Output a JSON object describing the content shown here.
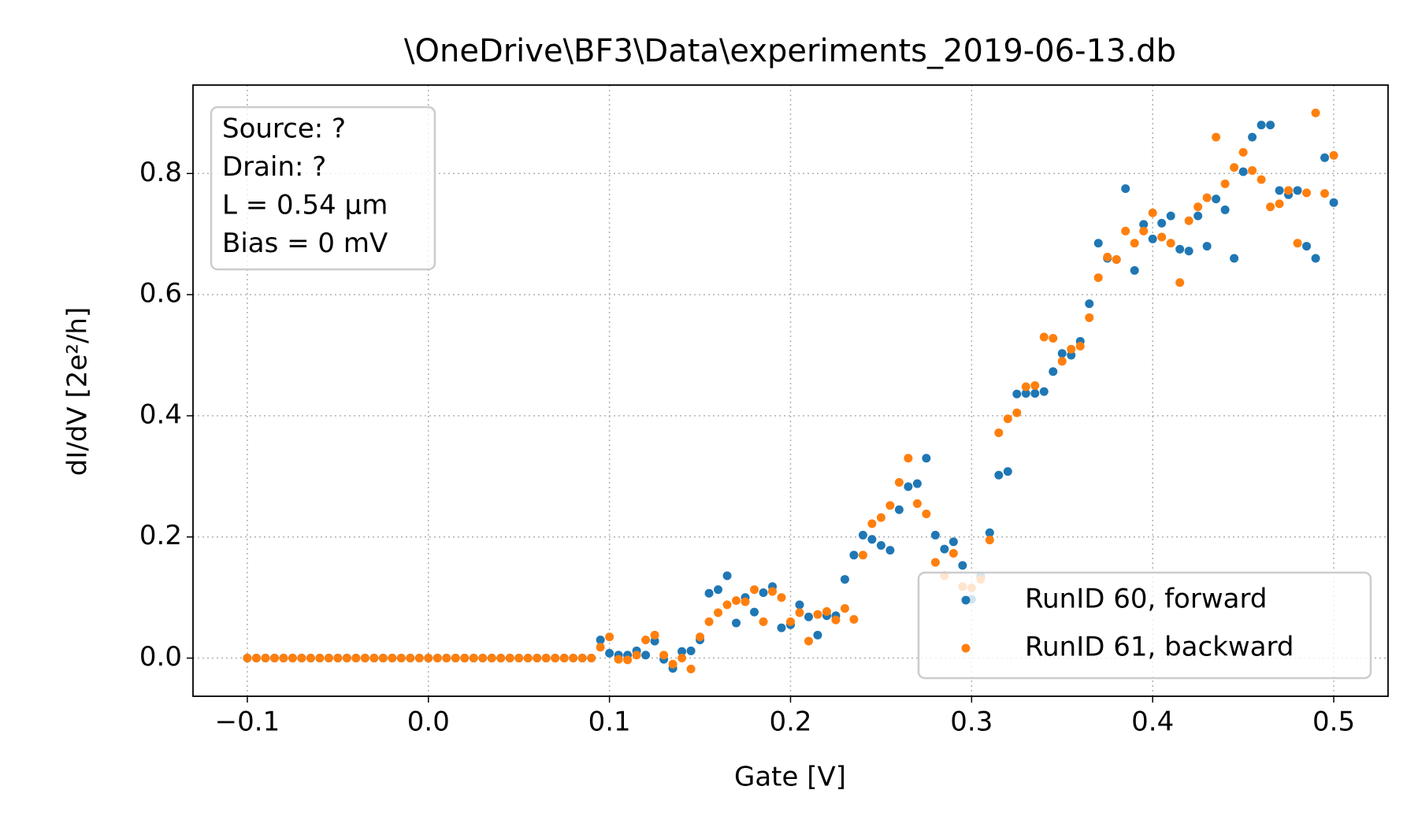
{
  "chart_data": {
    "type": "scatter",
    "title": "\\OneDrive\\BF3\\Data\\experiments_2019-06-13.db",
    "x_label": "Gate [V]",
    "y_label": "dI/dV [2e²/h]",
    "annotations": [
      "Source: ?",
      "Drain: ?",
      "L = 0.54 μm",
      "Bias = 0 mV"
    ],
    "x": [
      -0.1,
      -0.095,
      -0.09,
      -0.085,
      -0.08,
      -0.075,
      -0.07,
      -0.065,
      -0.06,
      -0.055,
      -0.05,
      -0.045,
      -0.04,
      -0.035,
      -0.03,
      -0.025,
      -0.02,
      -0.015,
      -0.01,
      -0.005,
      0,
      0.005,
      0.01,
      0.015,
      0.02,
      0.025,
      0.03,
      0.035,
      0.04,
      0.045,
      0.05,
      0.055,
      0.06,
      0.065,
      0.07,
      0.075,
      0.08,
      0.085,
      0.09,
      0.095,
      0.1,
      0.105,
      0.11,
      0.115,
      0.12,
      0.125,
      0.13,
      0.135,
      0.14,
      0.145,
      0.15,
      0.155,
      0.16,
      0.165,
      0.17,
      0.175,
      0.18,
      0.185,
      0.19,
      0.195,
      0.2,
      0.205,
      0.21,
      0.215,
      0.22,
      0.225,
      0.23,
      0.235,
      0.24,
      0.245,
      0.25,
      0.255,
      0.26,
      0.265,
      0.27,
      0.275,
      0.28,
      0.285,
      0.29,
      0.295,
      0.3,
      0.305,
      0.31,
      0.315,
      0.32,
      0.325,
      0.33,
      0.335,
      0.34,
      0.345,
      0.35,
      0.355,
      0.36,
      0.365,
      0.37,
      0.375,
      0.38,
      0.385,
      0.39,
      0.395,
      0.4,
      0.405,
      0.41,
      0.415,
      0.42,
      0.425,
      0.43,
      0.435,
      0.44,
      0.445,
      0.45,
      0.455,
      0.46,
      0.465,
      0.47,
      0.475,
      0.48,
      0.485,
      0.49,
      0.495,
      0.5
    ],
    "series": [
      {
        "name": "RunID 60, forward",
        "color": "#1f77b4",
        "values": [
          0,
          0,
          0,
          0,
          0,
          0,
          0,
          0,
          0,
          0,
          0,
          0,
          0,
          0,
          0,
          0,
          0,
          0,
          0,
          0,
          0,
          0,
          0,
          0,
          0,
          0,
          0,
          0,
          0,
          0,
          0,
          0,
          0,
          0,
          0,
          0,
          0,
          0,
          0,
          0.03,
          0.008,
          0.005,
          0.005,
          0.012,
          0.005,
          0.028,
          -0.002,
          -0.017,
          0.011,
          0.012,
          0.03,
          0.107,
          0.113,
          0.136,
          0.058,
          0.1,
          0.076,
          0.108,
          0.118,
          0.05,
          0.055,
          0.088,
          0.068,
          0.038,
          0.07,
          0.07,
          0.13,
          0.17,
          0.203,
          0.196,
          0.186,
          0.178,
          0.245,
          0.283,
          0.288,
          0.33,
          0.203,
          0.18,
          0.192,
          0.153,
          0.097,
          0.135,
          0.207,
          0.302,
          0.308,
          0.436,
          0.437,
          0.437,
          0.44,
          0.473,
          0.503,
          0.5,
          0.523,
          0.585,
          0.685,
          0.66,
          0.658,
          0.775,
          0.64,
          0.716,
          0.692,
          0.718,
          0.73,
          0.675,
          0.672,
          0.73,
          0.68,
          0.758,
          0.74,
          0.66,
          0.803,
          0.86,
          0.88,
          0.88,
          0.772,
          0.765,
          0.772,
          0.68,
          0.66,
          0.826,
          0.752
        ]
      },
      {
        "name": "RunID 61, backward",
        "color": "#ff7f0e",
        "values": [
          0,
          0,
          0,
          0,
          0,
          0,
          0,
          0,
          0,
          0,
          0,
          0,
          0,
          0,
          0,
          0,
          0,
          0,
          0,
          0,
          0,
          0,
          0,
          0,
          0,
          0,
          0,
          0,
          0,
          0,
          0,
          0,
          0,
          0,
          0,
          0,
          0,
          0,
          0,
          0.018,
          0.035,
          -0.002,
          -0.003,
          0.005,
          0.03,
          0.038,
          0.005,
          -0.01,
          0,
          -0.018,
          0.035,
          0.06,
          0.075,
          0.088,
          0.095,
          0.093,
          0.113,
          0.06,
          0.11,
          0.1,
          0.06,
          0.075,
          0.028,
          0.072,
          0.077,
          0.063,
          0.082,
          0.064,
          0.17,
          0.222,
          0.232,
          0.252,
          0.29,
          0.33,
          0.255,
          0.238,
          0.158,
          0.136,
          0.173,
          0.118,
          0.116,
          0.13,
          0.195,
          0.372,
          0.395,
          0.405,
          0.448,
          0.45,
          0.53,
          0.528,
          0.49,
          0.51,
          0.515,
          0.562,
          0.628,
          0.662,
          0.658,
          0.705,
          0.685,
          0.705,
          0.735,
          0.695,
          0.685,
          0.62,
          0.722,
          0.745,
          0.76,
          0.86,
          0.783,
          0.81,
          0.835,
          0.805,
          0.79,
          0.745,
          0.75,
          0.772,
          0.685,
          0.768,
          0.9,
          0.767,
          0.83
        ]
      }
    ],
    "xlim": [
      -0.13,
      0.53
    ],
    "ylim": [
      -0.063,
      0.946
    ],
    "xticks": [
      {
        "value": -0.1,
        "label": "−0.1"
      },
      {
        "value": 0,
        "label": "0.0"
      },
      0.1,
      0.2,
      0.3,
      0.4,
      0.5
    ],
    "yticks": [
      {
        "value": 0,
        "label": "0.0"
      },
      0.2,
      0.4,
      0.6,
      0.8
    ],
    "grid": true,
    "legend_position": "lower right"
  }
}
